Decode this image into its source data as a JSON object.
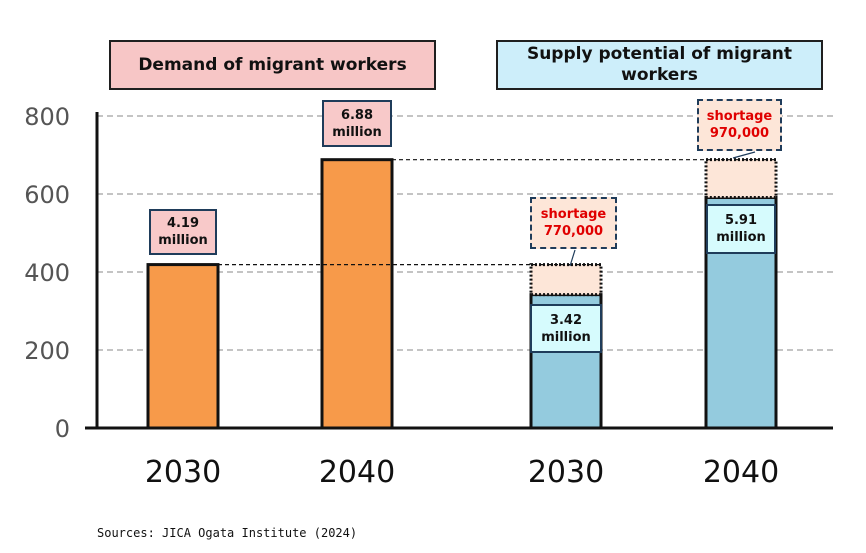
{
  "chart_data": {
    "type": "bar",
    "ylim": [
      0,
      800
    ],
    "yticks": [
      0,
      200,
      400,
      600,
      800
    ],
    "grid": true,
    "groups": [
      {
        "title": "Demand of migrant workers",
        "categories": [
          "2030",
          "2040"
        ]
      },
      {
        "title": "Supply potential of migrant workers",
        "categories": [
          "2030",
          "2040"
        ]
      }
    ],
    "series": [
      {
        "name": "Demand",
        "color": "#f79a4a",
        "values": [
          419,
          688,
          null,
          null
        ]
      },
      {
        "name": "Supply",
        "color": "#94cbde",
        "values": [
          null,
          null,
          342,
          591
        ]
      },
      {
        "name": "Shortage",
        "color": "#fde6d8",
        "values": [
          null,
          null,
          77,
          97
        ]
      }
    ],
    "x_labels": [
      "2030",
      "2040",
      "2030",
      "2040"
    ],
    "data_labels": {
      "demand_2030": "4.19 million",
      "demand_2040": "6.88 million",
      "supply_2030": "3.42 million",
      "supply_2040": "5.91 million",
      "shortage_2030": "shortage 770,000",
      "shortage_2040": "shortage 970,000"
    }
  },
  "headers": {
    "demand": "Demand of migrant workers",
    "supply": "Supply potential of migrant workers"
  },
  "labels": {
    "demand_2030": [
      "4.19",
      "million"
    ],
    "demand_2040": [
      "6.88",
      "million"
    ],
    "supply_2030": [
      "3.42",
      "million"
    ],
    "supply_2040": [
      "5.91",
      "million"
    ],
    "shortage_2030": [
      "shortage",
      "770,000"
    ],
    "shortage_2040": [
      "shortage",
      "970,000"
    ]
  },
  "source": "Sources: JICA Ogata Institute (2024)",
  "colors": {
    "demand": "#f79a4a",
    "supply": "#94cbde",
    "shortage": "#fde6d8",
    "grid": "#b0b0b0"
  }
}
